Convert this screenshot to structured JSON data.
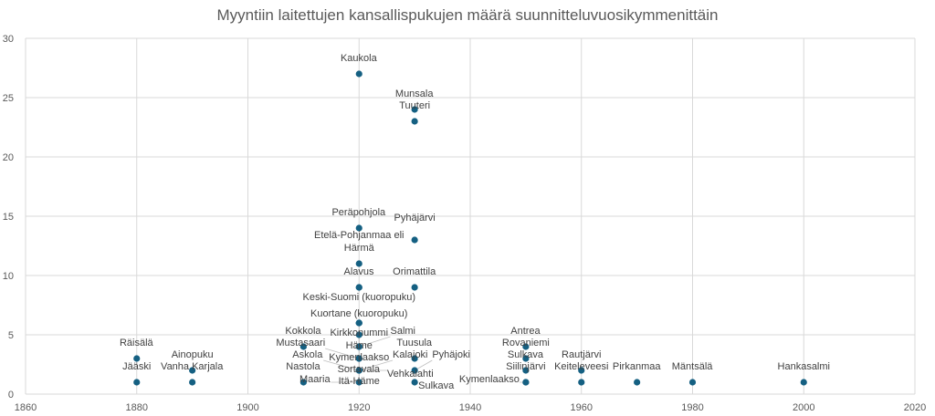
{
  "chart_data": {
    "type": "scatter",
    "title": "Myyntiin laitettujen kansallispukujen määrä suunnittelu­vuosikymmenittäin",
    "xlabel": "",
    "ylabel": "",
    "xlim": [
      1860,
      2020
    ],
    "ylim": [
      0,
      30
    ],
    "xticks": [
      1860,
      1880,
      1900,
      1920,
      1940,
      1960,
      1980,
      2000,
      2020
    ],
    "yticks": [
      0,
      5,
      10,
      15,
      20,
      25,
      30
    ],
    "grid": true,
    "color": "#156082",
    "points": [
      {
        "x": 1880,
        "y": 3,
        "label": "Räisälä"
      },
      {
        "x": 1880,
        "y": 1,
        "label": "Jääski"
      },
      {
        "x": 1890,
        "y": 2,
        "label": "Ainopuku"
      },
      {
        "x": 1890,
        "y": 1,
        "label": "Vanha Karjala"
      },
      {
        "x": 1910,
        "y": 4,
        "label": "Kokkola"
      },
      {
        "x": 1910,
        "y": 1,
        "label": "Nastola"
      },
      {
        "x": 1920,
        "y": 27,
        "label": "Kaukola"
      },
      {
        "x": 1920,
        "y": 14,
        "label": "Peräpohjola"
      },
      {
        "x": 1920,
        "y": 11,
        "label": "Etelä-Pohjanmaa eli Härmä"
      },
      {
        "x": 1920,
        "y": 9,
        "label": "Alavus"
      },
      {
        "x": 1920,
        "y": 9,
        "label": "Keski-Suomi (kuoropuku)"
      },
      {
        "x": 1920,
        "y": 6,
        "label": "Kuortane (kuoropuku)"
      },
      {
        "x": 1920,
        "y": 6,
        "label": "Kirkkonummi"
      },
      {
        "x": 1920,
        "y": 6,
        "label": "Häme"
      },
      {
        "x": 1920,
        "y": 5,
        "label": "Kymenlaakso"
      },
      {
        "x": 1920,
        "y": 4,
        "label": "Sortavala"
      },
      {
        "x": 1920,
        "y": 4,
        "label": "Salmi"
      },
      {
        "x": 1920,
        "y": 3,
        "label": "Itä-Häme"
      },
      {
        "x": 1920,
        "y": 3,
        "label": "Mustasaari"
      },
      {
        "x": 1920,
        "y": 2,
        "label": "Vehkalahti"
      },
      {
        "x": 1920,
        "y": 2,
        "label": "Askola"
      },
      {
        "x": 1920,
        "y": 2,
        "label": "Kalajoki"
      },
      {
        "x": 1920,
        "y": 1,
        "label": "Maaria"
      },
      {
        "x": 1930,
        "y": 24,
        "label": "Munsala"
      },
      {
        "x": 1930,
        "y": 23,
        "label": "Tuuteri"
      },
      {
        "x": 1930,
        "y": 13,
        "label": "Pyhäjärvi"
      },
      {
        "x": 1930,
        "y": 9,
        "label": "Orimattila"
      },
      {
        "x": 1930,
        "y": 3,
        "label": "Tuusula"
      },
      {
        "x": 1930,
        "y": 2,
        "label": "Pyhäjoki"
      },
      {
        "x": 1930,
        "y": 1,
        "label": "Sulkava"
      },
      {
        "x": 1950,
        "y": 4,
        "label": "Antrea"
      },
      {
        "x": 1950,
        "y": 3,
        "label": "Rovaniemi"
      },
      {
        "x": 1950,
        "y": 2,
        "label": "Sulkava"
      },
      {
        "x": 1950,
        "y": 1,
        "label": "Siilinjärvi"
      },
      {
        "x": 1950,
        "y": 1,
        "label": "Kymenlaakso"
      },
      {
        "x": 1960,
        "y": 2,
        "label": "Rautjärvi"
      },
      {
        "x": 1960,
        "y": 1,
        "label": "Keiteleveesi"
      },
      {
        "x": 1970,
        "y": 1,
        "label": "Pirkanmaa"
      },
      {
        "x": 1980,
        "y": 1,
        "label": "Mäntsälä"
      },
      {
        "x": 2000,
        "y": 1,
        "label": "Hankasalmi"
      }
    ]
  }
}
